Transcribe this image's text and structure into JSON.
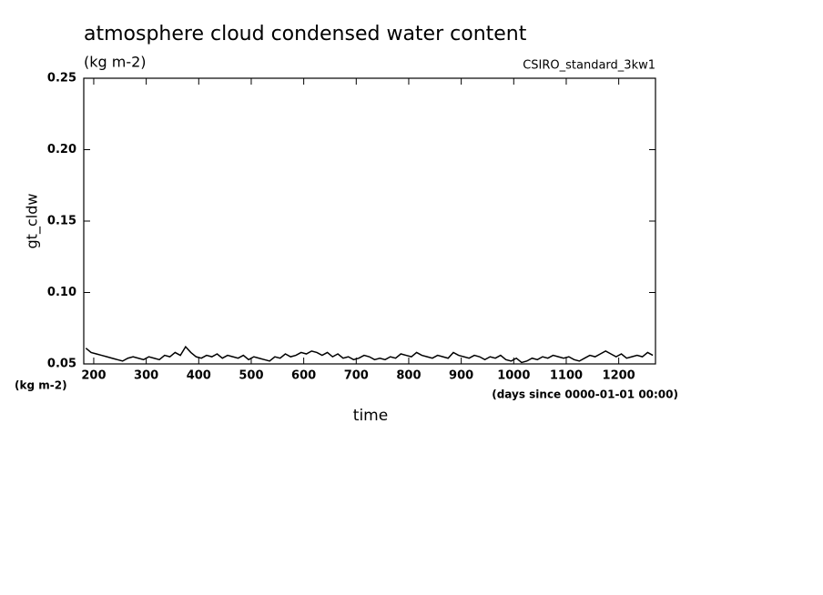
{
  "chart_data": {
    "type": "line",
    "title": "atmosphere cloud condensed water content",
    "units": "(kg m-2)",
    "dataset": "CSIRO_standard_3kw1",
    "y_label": "gt_cldw",
    "y_units": "(kg m-2)",
    "x_units": "(days since 0000-01-01 00:00)",
    "x_label": "time",
    "xlim": [
      181,
      1270
    ],
    "ylim": [
      0.05,
      0.25
    ],
    "xticks": [
      200,
      300,
      400,
      500,
      600,
      700,
      800,
      900,
      1000,
      1100,
      1200
    ],
    "yticks": [
      0.05,
      {
        "value": 0.1,
        "label": "0.10"
      },
      0.15,
      {
        "value": 0.2,
        "label": "0.20"
      },
      0.25
    ],
    "grid": false,
    "x": [
      185,
      195,
      205,
      215,
      225,
      235,
      245,
      255,
      265,
      275,
      285,
      295,
      305,
      315,
      325,
      335,
      345,
      355,
      365,
      375,
      385,
      395,
      405,
      415,
      425,
      435,
      445,
      455,
      465,
      475,
      485,
      495,
      505,
      515,
      525,
      535,
      545,
      555,
      565,
      575,
      585,
      595,
      605,
      615,
      625,
      635,
      645,
      655,
      665,
      675,
      685,
      695,
      705,
      715,
      725,
      735,
      745,
      755,
      765,
      775,
      785,
      795,
      805,
      815,
      825,
      835,
      845,
      855,
      865,
      875,
      885,
      895,
      905,
      915,
      925,
      935,
      945,
      955,
      965,
      975,
      985,
      995,
      1005,
      1015,
      1025,
      1035,
      1045,
      1055,
      1065,
      1075,
      1085,
      1095,
      1105,
      1115,
      1125,
      1135,
      1145,
      1155,
      1165,
      1175,
      1185,
      1195,
      1205,
      1215,
      1225,
      1235,
      1245,
      1255,
      1265
    ],
    "series": [
      {
        "name": "gt_cldw",
        "color": "#000000",
        "values": [
          0.061,
          0.058,
          0.057,
          0.056,
          0.055,
          0.054,
          0.053,
          0.052,
          0.054,
          0.055,
          0.054,
          0.053,
          0.055,
          0.054,
          0.053,
          0.056,
          0.055,
          0.058,
          0.056,
          0.062,
          0.058,
          0.055,
          0.054,
          0.056,
          0.055,
          0.057,
          0.054,
          0.056,
          0.055,
          0.054,
          0.056,
          0.053,
          0.055,
          0.054,
          0.053,
          0.052,
          0.055,
          0.054,
          0.057,
          0.055,
          0.056,
          0.058,
          0.057,
          0.059,
          0.058,
          0.056,
          0.058,
          0.055,
          0.057,
          0.054,
          0.055,
          0.053,
          0.054,
          0.056,
          0.055,
          0.053,
          0.054,
          0.053,
          0.055,
          0.054,
          0.057,
          0.056,
          0.055,
          0.058,
          0.056,
          0.055,
          0.054,
          0.056,
          0.055,
          0.054,
          0.058,
          0.056,
          0.055,
          0.054,
          0.056,
          0.055,
          0.053,
          0.055,
          0.054,
          0.056,
          0.053,
          0.052,
          0.054,
          0.051,
          0.052,
          0.054,
          0.053,
          0.055,
          0.054,
          0.056,
          0.055,
          0.054,
          0.055,
          0.053,
          0.052,
          0.054,
          0.056,
          0.055,
          0.057,
          0.059,
          0.057,
          0.055,
          0.057,
          0.054,
          0.055,
          0.056,
          0.055,
          0.058,
          0.056
        ]
      }
    ]
  }
}
